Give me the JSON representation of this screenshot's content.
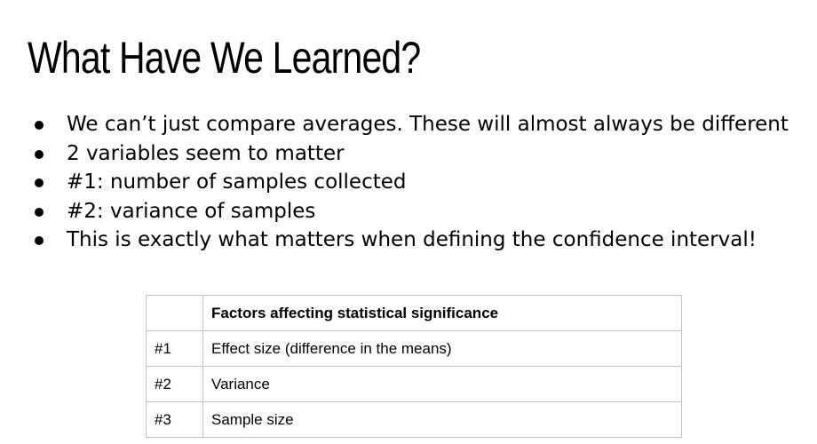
{
  "slide": {
    "title": "What Have We Learned?"
  },
  "bullets": [
    "We can’t just compare averages. These will almost always be different",
    "2 variables seem to matter",
    "#1: number of samples collected",
    "#2: variance of samples",
    "This is exactly what matters when defining the confidence interval!"
  ],
  "table": {
    "header": [
      "",
      "Factors affecting statistical significance"
    ],
    "rows": [
      [
        "#1",
        "Effect size (difference in the means)"
      ],
      [
        "#2",
        "Variance"
      ],
      [
        "#3",
        "Sample size"
      ]
    ]
  }
}
